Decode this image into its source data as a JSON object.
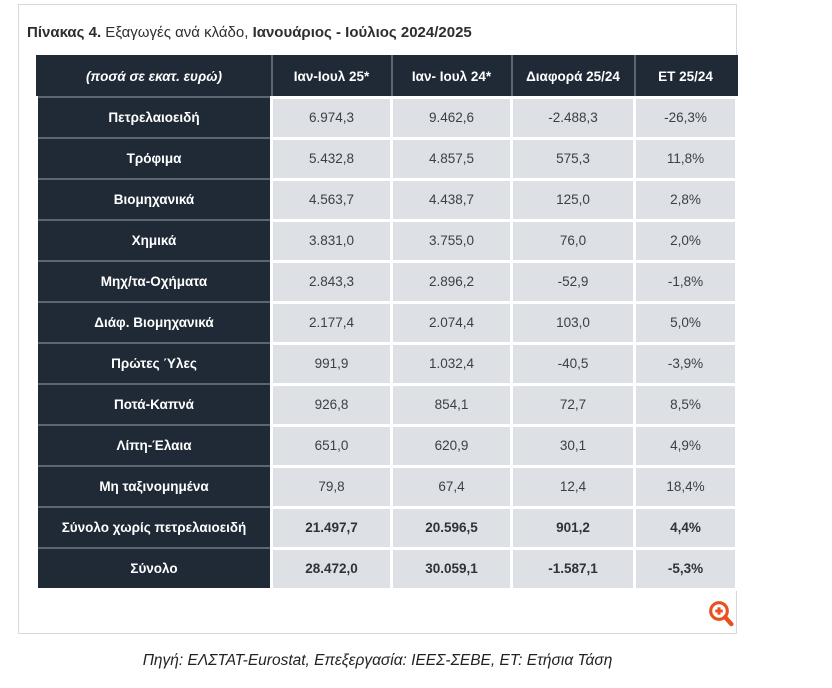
{
  "figure": {
    "title": {
      "bold_prefix": "Πίνακας 4.",
      "regular_middle": " Εξαγωγές ανά κλάδο, ",
      "bold_suffix": "Ιανουάριος - Ιούλιος 2024/2025"
    },
    "caption": "Πηγή: ΕΛΣΤΑΤ-Eurostat, Επεξεργασία: ΙΕΕΣ-ΣΕΒΕ, ΕΤ: Ετήσια Τάση",
    "zoom_icon": "magnifier-plus-icon",
    "colors": {
      "header_bg": "#1f2a36",
      "cell_bg": "#dde0e4",
      "cell_border": "#ffffff",
      "dark_separator": "#5c6570",
      "zoom_icon_color": "#e8501e",
      "container_border": "#d6d8db"
    }
  },
  "chart_data": {
    "type": "table",
    "title": "Πίνακας 4. Εξαγωγές ανά κλάδο, Ιανουάριος - Ιούλιος 2024/2025",
    "columns": [
      "(ποσά σε εκατ. ευρώ)",
      "Ιαν-Ιουλ 25*",
      "Ιαν- Ιουλ 24*",
      "Διαφορά 25/24",
      "ΕΤ 25/24"
    ],
    "rows": [
      {
        "label": "Πετρελαιοειδή",
        "values": [
          "6.974,3",
          "9.462,6",
          "-2.488,3",
          "-26,3%"
        ],
        "bold": false
      },
      {
        "label": "Τρόφιμα",
        "values": [
          "5.432,8",
          "4.857,5",
          "575,3",
          "11,8%"
        ],
        "bold": false
      },
      {
        "label": "Βιομηχανικά",
        "values": [
          "4.563,7",
          "4.438,7",
          "125,0",
          "2,8%"
        ],
        "bold": false
      },
      {
        "label": "Χημικά",
        "values": [
          "3.831,0",
          "3.755,0",
          "76,0",
          "2,0%"
        ],
        "bold": false
      },
      {
        "label": "Μηχ/τα-Οχήματα",
        "values": [
          "2.843,3",
          "2.896,2",
          "-52,9",
          "-1,8%"
        ],
        "bold": false
      },
      {
        "label": "Διάφ. Βιομηχανικά",
        "values": [
          "2.177,4",
          "2.074,4",
          "103,0",
          "5,0%"
        ],
        "bold": false
      },
      {
        "label": "Πρώτες Ύλες",
        "values": [
          "991,9",
          "1.032,4",
          "-40,5",
          "-3,9%"
        ],
        "bold": false
      },
      {
        "label": "Ποτά-Καπνά",
        "values": [
          "926,8",
          "854,1",
          "72,7",
          "8,5%"
        ],
        "bold": false
      },
      {
        "label": "Λίπη-Έλαια",
        "values": [
          "651,0",
          "620,9",
          "30,1",
          "4,9%"
        ],
        "bold": false
      },
      {
        "label": "Μη ταξινομημένα",
        "values": [
          "79,8",
          "67,4",
          "12,4",
          "18,4%"
        ],
        "bold": false
      },
      {
        "label": "Σύνολο χωρίς πετρελαιοειδή",
        "values": [
          "21.497,7",
          "20.596,5",
          "901,2",
          "4,4%"
        ],
        "bold": true
      },
      {
        "label": "Σύνολο",
        "values": [
          "28.472,0",
          "30.059,1",
          "-1.587,1",
          "-5,3%"
        ],
        "bold": true
      }
    ],
    "caption": "Πηγή: ΕΛΣΤΑΤ-Eurostat, Επεξεργασία: ΙΕΕΣ-ΣΕΒΕ, ΕΤ: Ετήσια Τάση"
  }
}
